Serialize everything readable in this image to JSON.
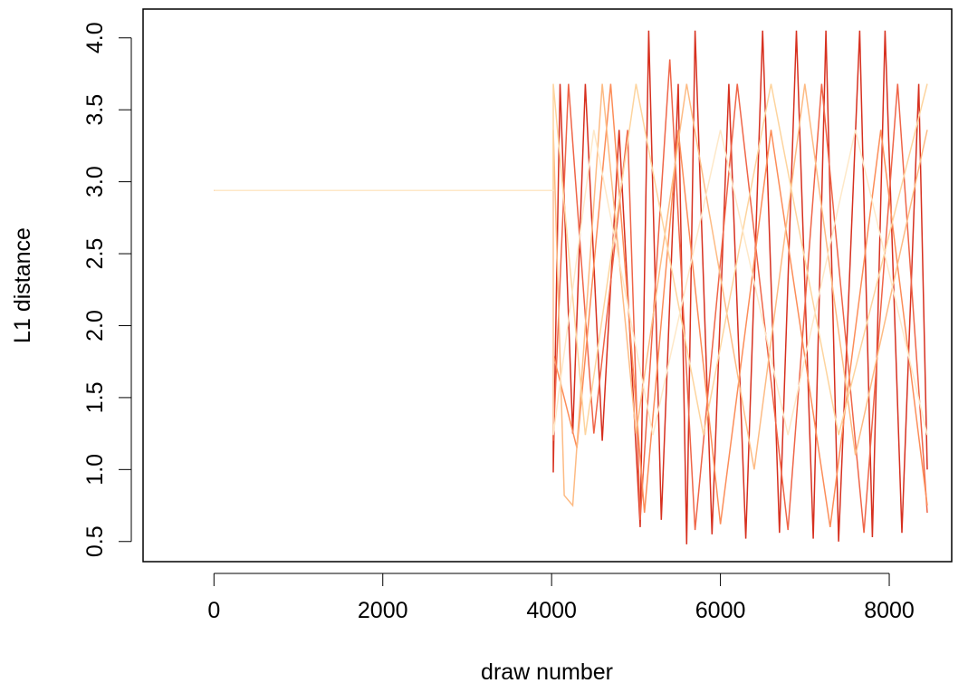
{
  "chart_data": {
    "type": "line",
    "title": "",
    "xlabel": "draw number",
    "ylabel": "L1 distance",
    "xlim": [
      -840,
      8740
    ],
    "ylim": [
      0.36,
      4.2
    ],
    "xticks": [
      0,
      2000,
      4000,
      6000,
      8000
    ],
    "yticks": [
      0.5,
      1.0,
      1.5,
      2.0,
      2.5,
      3.0,
      3.5,
      4.0
    ],
    "xtick_labels": [
      "0",
      "2000",
      "4000",
      "6000",
      "8000"
    ],
    "ytick_labels": [
      "0.5",
      "1.0",
      "1.5",
      "2.0",
      "2.5",
      "3.0",
      "3.5",
      "4.0"
    ],
    "grid": false,
    "legend": "none",
    "n_draws": 8450,
    "series": [
      {
        "color": "#d7301f",
        "points": [
          {
            "x": 0,
            "y": 2.94
          },
          {
            "x": 4020,
            "y": 2.94
          },
          {
            "x": 4020,
            "y": 0.98
          },
          {
            "x": 4100,
            "y": 3.68
          },
          {
            "x": 4250,
            "y": 1.25
          },
          {
            "x": 4400,
            "y": 3.68
          },
          {
            "x": 4600,
            "y": 1.2
          },
          {
            "x": 4800,
            "y": 3.36
          },
          {
            "x": 5050,
            "y": 0.6
          },
          {
            "x": 5150,
            "y": 4.05
          },
          {
            "x": 5300,
            "y": 0.65
          },
          {
            "x": 5500,
            "y": 3.68
          },
          {
            "x": 5600,
            "y": 0.48
          },
          {
            "x": 5700,
            "y": 4.05
          },
          {
            "x": 5900,
            "y": 0.55
          },
          {
            "x": 6100,
            "y": 3.68
          },
          {
            "x": 6300,
            "y": 0.52
          },
          {
            "x": 6500,
            "y": 4.05
          },
          {
            "x": 6700,
            "y": 0.56
          },
          {
            "x": 6900,
            "y": 4.05
          },
          {
            "x": 7100,
            "y": 0.52
          },
          {
            "x": 7250,
            "y": 4.05
          },
          {
            "x": 7400,
            "y": 0.5
          },
          {
            "x": 7650,
            "y": 4.05
          },
          {
            "x": 7800,
            "y": 0.53
          },
          {
            "x": 7950,
            "y": 4.05
          },
          {
            "x": 8150,
            "y": 0.56
          },
          {
            "x": 8350,
            "y": 3.68
          },
          {
            "x": 8450,
            "y": 1.0
          }
        ]
      },
      {
        "color": "#ef6548",
        "points": [
          {
            "x": 0,
            "y": 2.94
          },
          {
            "x": 4020,
            "y": 2.94
          },
          {
            "x": 4020,
            "y": 1.2
          },
          {
            "x": 4200,
            "y": 3.68
          },
          {
            "x": 4500,
            "y": 1.25
          },
          {
            "x": 4900,
            "y": 3.36
          },
          {
            "x": 5050,
            "y": 0.65
          },
          {
            "x": 5400,
            "y": 3.85
          },
          {
            "x": 5700,
            "y": 0.58
          },
          {
            "x": 6200,
            "y": 3.68
          },
          {
            "x": 6800,
            "y": 0.58
          },
          {
            "x": 7200,
            "y": 3.68
          },
          {
            "x": 7700,
            "y": 0.56
          },
          {
            "x": 8100,
            "y": 3.68
          },
          {
            "x": 8450,
            "y": 0.7
          }
        ]
      },
      {
        "color": "#fc8d59",
        "points": [
          {
            "x": 0,
            "y": 2.94
          },
          {
            "x": 4020,
            "y": 2.94
          },
          {
            "x": 4020,
            "y": 1.8
          },
          {
            "x": 4300,
            "y": 1.15
          },
          {
            "x": 4700,
            "y": 3.68
          },
          {
            "x": 5100,
            "y": 0.7
          },
          {
            "x": 5500,
            "y": 3.36
          },
          {
            "x": 6000,
            "y": 0.62
          },
          {
            "x": 6600,
            "y": 3.36
          },
          {
            "x": 7300,
            "y": 0.6
          },
          {
            "x": 7900,
            "y": 3.36
          },
          {
            "x": 8450,
            "y": 0.75
          }
        ]
      },
      {
        "color": "#fdbb84",
        "points": [
          {
            "x": 0,
            "y": 2.94
          },
          {
            "x": 4020,
            "y": 2.94
          },
          {
            "x": 4020,
            "y": 3.36
          },
          {
            "x": 4150,
            "y": 0.82
          },
          {
            "x": 4250,
            "y": 0.75
          },
          {
            "x": 4600,
            "y": 3.68
          },
          {
            "x": 5000,
            "y": 1.25
          },
          {
            "x": 5600,
            "y": 3.68
          },
          {
            "x": 6400,
            "y": 1.0
          },
          {
            "x": 7000,
            "y": 3.68
          },
          {
            "x": 7600,
            "y": 1.1
          },
          {
            "x": 8450,
            "y": 3.36
          }
        ]
      },
      {
        "color": "#fdd49e",
        "points": [
          {
            "x": 0,
            "y": 2.94
          },
          {
            "x": 4020,
            "y": 2.94
          },
          {
            "x": 4020,
            "y": 3.68
          },
          {
            "x": 4400,
            "y": 1.24
          },
          {
            "x": 5000,
            "y": 3.68
          },
          {
            "x": 5800,
            "y": 1.24
          },
          {
            "x": 6600,
            "y": 3.68
          },
          {
            "x": 7400,
            "y": 1.24
          },
          {
            "x": 8450,
            "y": 3.68
          }
        ]
      },
      {
        "color": "#fee8c8",
        "points": [
          {
            "x": 0,
            "y": 2.94
          },
          {
            "x": 4020,
            "y": 2.94
          },
          {
            "x": 4020,
            "y": 1.24
          },
          {
            "x": 4500,
            "y": 3.36
          },
          {
            "x": 5200,
            "y": 1.24
          },
          {
            "x": 6000,
            "y": 3.36
          },
          {
            "x": 6800,
            "y": 1.24
          },
          {
            "x": 7600,
            "y": 3.36
          },
          {
            "x": 8450,
            "y": 1.24
          }
        ]
      }
    ]
  }
}
